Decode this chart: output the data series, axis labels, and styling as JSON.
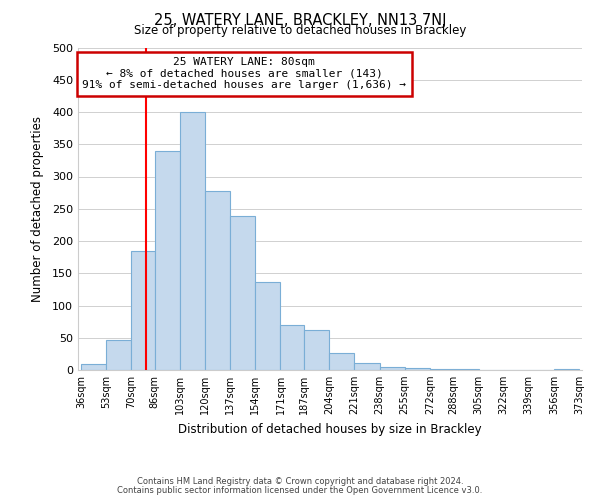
{
  "title": "25, WATERY LANE, BRACKLEY, NN13 7NJ",
  "subtitle": "Size of property relative to detached houses in Brackley",
  "xlabel": "Distribution of detached houses by size in Brackley",
  "ylabel": "Number of detached properties",
  "footer_lines": [
    "Contains HM Land Registry data © Crown copyright and database right 2024.",
    "Contains public sector information licensed under the Open Government Licence v3.0."
  ],
  "bin_edges": [
    36,
    53,
    70,
    86,
    103,
    120,
    137,
    154,
    171,
    187,
    204,
    221,
    238,
    255,
    272,
    288,
    305,
    322,
    339,
    356,
    373
  ],
  "bar_heights": [
    10,
    47,
    184,
    340,
    400,
    278,
    239,
    136,
    70,
    62,
    26,
    11,
    5,
    3,
    2,
    1,
    0,
    0,
    0,
    2
  ],
  "bar_color": "#c5d9ed",
  "bar_edge_color": "#7aaed6",
  "red_line_x": 80,
  "annotation_title": "25 WATERY LANE: 80sqm",
  "annotation_line1": "← 8% of detached houses are smaller (143)",
  "annotation_line2": "91% of semi-detached houses are larger (1,636) →",
  "annotation_box_color": "#ffffff",
  "annotation_border_color": "#cc0000",
  "ylim": [
    0,
    500
  ],
  "yticks": [
    0,
    50,
    100,
    150,
    200,
    250,
    300,
    350,
    400,
    450,
    500
  ],
  "background_color": "#ffffff",
  "grid_color": "#d0d0d0"
}
